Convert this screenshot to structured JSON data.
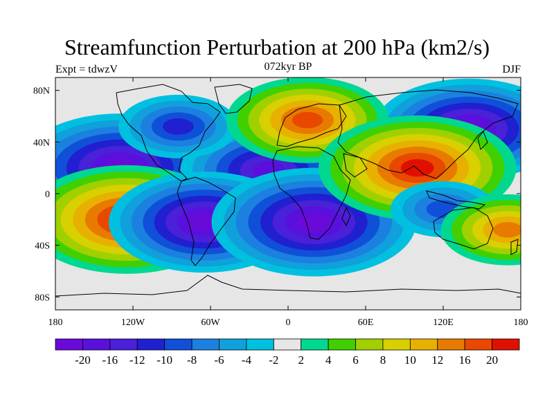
{
  "title": "Streamfunction Perturbation at 200 hPa (km2/s)",
  "left_label": "Expt = tdwzV",
  "center_label": "072kyr BP",
  "right_label": "DJF",
  "map": {
    "lon_range": [
      -180,
      180
    ],
    "lat_range": [
      -90,
      90
    ],
    "x_ticks": [
      {
        "lon": -180,
        "label": "180"
      },
      {
        "lon": -120,
        "label": "120W"
      },
      {
        "lon": -60,
        "label": "60W"
      },
      {
        "lon": 0,
        "label": "0"
      },
      {
        "lon": 60,
        "label": "60E"
      },
      {
        "lon": 120,
        "label": "120E"
      },
      {
        "lon": 180,
        "label": "180"
      }
    ],
    "y_ticks": [
      {
        "lat": 80,
        "label": "80N"
      },
      {
        "lat": 40,
        "label": "40N"
      },
      {
        "lat": 0,
        "label": "0"
      },
      {
        "lat": -40,
        "label": "40S"
      },
      {
        "lat": -80,
        "label": "80S"
      }
    ],
    "background_color": "#e6e6e6"
  },
  "colorbar": {
    "colors": [
      "#6a0ad8",
      "#5a10dc",
      "#4a20d8",
      "#2020d0",
      "#1050d8",
      "#1c80e0",
      "#10a0dc",
      "#00c0e0",
      "#e6e6e6",
      "#00d890",
      "#40d000",
      "#a0d000",
      "#d8d000",
      "#e8b000",
      "#e87a00",
      "#e84800",
      "#e01000"
    ],
    "labels": [
      "-20",
      "-16",
      "-12",
      "-10",
      "-8",
      "-6",
      "-4",
      "-2",
      "2",
      "4",
      "6",
      "8",
      "10",
      "12",
      "16",
      "20"
    ],
    "levels": [
      -20,
      -16,
      -12,
      -10,
      -8,
      -6,
      -4,
      -2,
      2,
      4,
      6,
      8,
      10,
      12,
      16,
      20
    ]
  },
  "field_centers": [
    {
      "name": "central-pacific-low-nh",
      "lon": -130,
      "lat": 20,
      "amp": -22
    },
    {
      "name": "central-atlantic-low-nh",
      "lon": -15,
      "lat": 18,
      "amp": -18
    },
    {
      "name": "siberia-low",
      "lon": 140,
      "lat": 50,
      "amp": -20
    },
    {
      "name": "north-america-low",
      "lon": -85,
      "lat": 52,
      "amp": -10
    },
    {
      "name": "east-pacific-high-sh",
      "lon": -125,
      "lat": -20,
      "amp": 22
    },
    {
      "name": "south-america-low",
      "lon": -65,
      "lat": -22,
      "amp": -20
    },
    {
      "name": "south-africa-low",
      "lon": 20,
      "lat": -22,
      "amp": -22
    },
    {
      "name": "europe-high",
      "lon": 15,
      "lat": 57,
      "amp": 16
    },
    {
      "name": "south-asia-high",
      "lon": 100,
      "lat": 20,
      "amp": 21
    },
    {
      "name": "maritime-low-sh",
      "lon": 120,
      "lat": -12,
      "amp": -8
    },
    {
      "name": "australia-high",
      "lon": 170,
      "lat": -28,
      "amp": 12
    }
  ]
}
